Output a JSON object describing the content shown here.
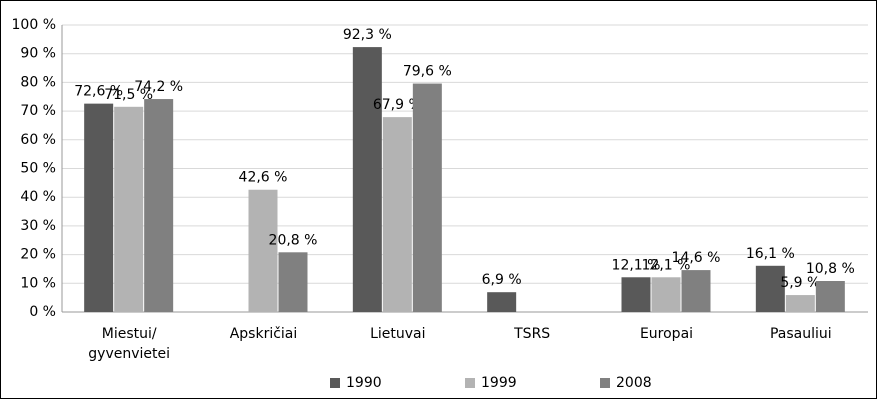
{
  "chart_data": {
    "type": "bar",
    "categories": [
      "Miestui/ gyvenvietei",
      "Apskričiai",
      "Lietuvai",
      "TSRS",
      "Europai",
      "Pasauliui"
    ],
    "series": [
      {
        "name": "1990",
        "color": "#595959",
        "values": [
          72.6,
          null,
          92.3,
          6.9,
          12.1,
          16.1
        ],
        "value_labels": [
          "72,6 %",
          null,
          "92,3 %",
          "6,9 %",
          "12,1 %",
          "16,1 %"
        ]
      },
      {
        "name": "1999",
        "color": "#b3b3b3",
        "values": [
          71.5,
          42.6,
          67.9,
          null,
          12.1,
          5.9
        ],
        "value_labels": [
          "71,5 %",
          "42,6 %",
          "67,9 %",
          null,
          "12,1 %",
          "5,9 %"
        ]
      },
      {
        "name": "2008",
        "color": "#808080",
        "values": [
          74.2,
          20.8,
          79.6,
          null,
          14.6,
          10.8
        ],
        "value_labels": [
          "74,2 %",
          "20,8 %",
          "79,6 %",
          null,
          "14,6 %",
          "10,8 %"
        ]
      }
    ],
    "ylim": [
      0,
      100
    ],
    "yticks": [
      {
        "value": 0,
        "label": "0 %"
      },
      {
        "value": 10,
        "label": "10 %"
      },
      {
        "value": 20,
        "label": "20 %"
      },
      {
        "value": 30,
        "label": "30 %"
      },
      {
        "value": 40,
        "label": "40 %"
      },
      {
        "value": 50,
        "label": "50 %"
      },
      {
        "value": 60,
        "label": "60 %"
      },
      {
        "value": 70,
        "label": "70 %"
      },
      {
        "value": 80,
        "label": "80 %"
      },
      {
        "value": 90,
        "label": "90 %"
      },
      {
        "value": 100,
        "label": "100 %"
      }
    ],
    "grid": true,
    "legend": "bottom"
  }
}
